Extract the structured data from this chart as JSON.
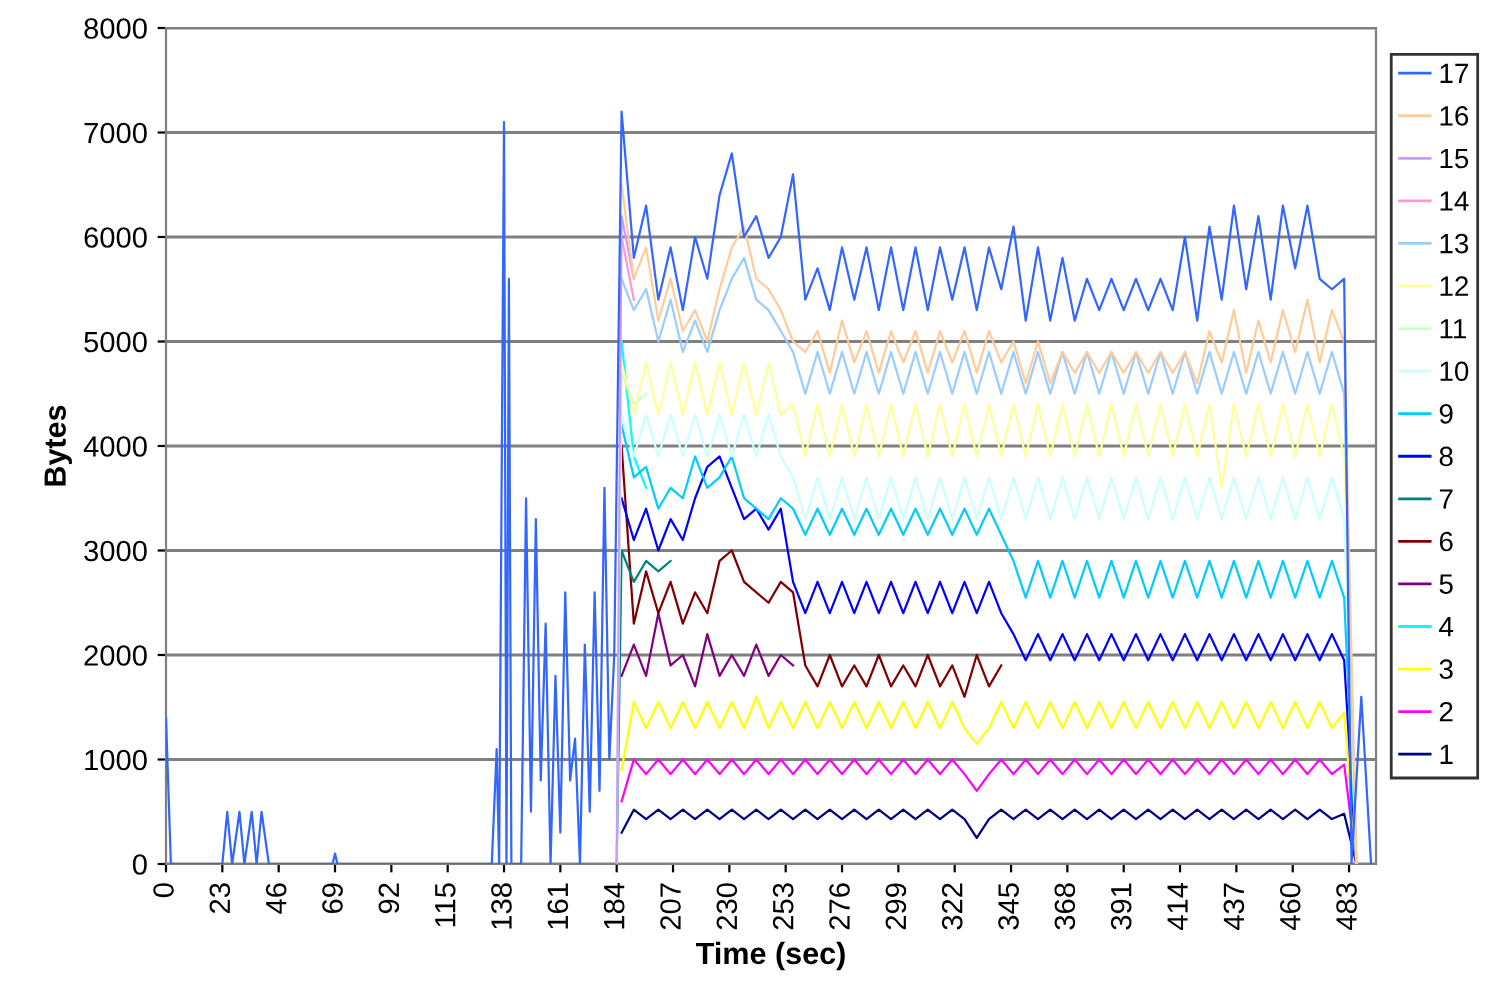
{
  "chart_data": {
    "type": "line",
    "xlabel": "Time (sec)",
    "ylabel": "Bytes",
    "x": [
      186,
      191,
      196,
      201,
      206,
      211,
      216,
      221,
      226,
      231,
      236,
      241,
      246,
      251,
      256,
      261,
      266,
      271,
      276,
      281,
      286,
      291,
      296,
      301,
      306,
      311,
      316,
      321,
      326,
      331,
      336,
      341,
      346,
      351,
      356,
      361,
      366,
      371,
      376,
      381,
      386,
      391,
      396,
      401,
      406,
      411,
      416,
      421,
      426,
      431,
      436,
      441,
      446,
      451,
      456,
      461,
      466,
      471,
      476,
      481,
      486
    ],
    "xlim": [
      0,
      494
    ],
    "xticks": [
      0,
      23,
      46,
      69,
      92,
      115,
      138,
      161,
      184,
      207,
      230,
      253,
      276,
      299,
      322,
      345,
      368,
      391,
      414,
      437,
      460,
      483
    ],
    "ylim": [
      0,
      8000
    ],
    "yticks": [
      0,
      1000,
      2000,
      3000,
      4000,
      5000,
      6000,
      7000,
      8000
    ],
    "grid": "y",
    "legend": "right",
    "line_style": "solid",
    "marker": "none",
    "series": [
      {
        "name": "1",
        "color": "#000080",
        "values": [
          300,
          520,
          430,
          520,
          430,
          520,
          430,
          520,
          430,
          520,
          430,
          520,
          430,
          520,
          430,
          520,
          430,
          520,
          430,
          520,
          430,
          520,
          430,
          520,
          430,
          520,
          430,
          520,
          430,
          250,
          430,
          520,
          430,
          520,
          430,
          520,
          430,
          520,
          430,
          520,
          430,
          520,
          430,
          520,
          430,
          520,
          430,
          520,
          430,
          520,
          430,
          520,
          430,
          520,
          430,
          520,
          430,
          520,
          430,
          480,
          0
        ]
      },
      {
        "name": "2",
        "color": "#ff00ff",
        "values": [
          600,
          1000,
          860,
          1000,
          860,
          1000,
          860,
          1000,
          860,
          1000,
          860,
          1000,
          860,
          1000,
          860,
          1000,
          860,
          1000,
          860,
          1000,
          860,
          1000,
          860,
          1000,
          860,
          1000,
          860,
          1000,
          860,
          700,
          860,
          1000,
          860,
          1000,
          860,
          1000,
          860,
          1000,
          860,
          1000,
          860,
          1000,
          860,
          1000,
          860,
          1000,
          860,
          1000,
          860,
          1000,
          860,
          1000,
          860,
          1000,
          860,
          1000,
          860,
          1000,
          860,
          950,
          0
        ]
      },
      {
        "name": "3",
        "color": "#ffff00",
        "values": [
          900,
          1550,
          1300,
          1550,
          1300,
          1550,
          1300,
          1550,
          1300,
          1550,
          1300,
          1600,
          1300,
          1550,
          1300,
          1550,
          1300,
          1550,
          1300,
          1550,
          1300,
          1550,
          1300,
          1550,
          1300,
          1550,
          1300,
          1550,
          1300,
          1150,
          1300,
          1550,
          1300,
          1550,
          1300,
          1550,
          1300,
          1550,
          1300,
          1550,
          1300,
          1550,
          1300,
          1550,
          1300,
          1550,
          1300,
          1550,
          1300,
          1550,
          1300,
          1550,
          1300,
          1550,
          1300,
          1550,
          1300,
          1550,
          1300,
          1450,
          0
        ]
      },
      {
        "name": "4",
        "color": "#00ffff",
        "x": [
          186,
          191,
          196
        ],
        "values": [
          5000,
          3900,
          3600
        ]
      },
      {
        "name": "5",
        "color": "#800080",
        "values": [
          1800,
          2100,
          1800,
          2400,
          1900,
          2000,
          1700,
          2200,
          1800,
          2000,
          1800,
          2100,
          1800,
          2000,
          1900,
          null,
          null,
          null,
          null,
          null,
          null,
          null,
          null,
          null,
          null,
          null,
          null,
          null,
          null,
          null,
          null,
          null,
          null,
          null,
          null,
          null,
          null,
          null,
          null,
          null,
          null,
          null,
          null,
          null,
          null,
          null,
          null,
          null,
          null,
          null,
          null,
          null,
          null,
          null,
          null,
          null,
          null,
          null,
          null,
          null,
          null
        ]
      },
      {
        "name": "6",
        "color": "#800000",
        "values": [
          4000,
          2300,
          2800,
          2400,
          2700,
          2300,
          2600,
          2400,
          2900,
          3000,
          2700,
          2600,
          2500,
          2700,
          2600,
          1900,
          1700,
          2000,
          1700,
          1900,
          1700,
          2000,
          1700,
          1900,
          1700,
          2000,
          1700,
          1900,
          1600,
          2000,
          1700,
          1900,
          null,
          null,
          null,
          null,
          null,
          null,
          null,
          null,
          null,
          null,
          null,
          null,
          null,
          null,
          null,
          null,
          null,
          null,
          null,
          null,
          null,
          null,
          null,
          null,
          null,
          null,
          null,
          null,
          null
        ]
      },
      {
        "name": "7",
        "color": "#008080",
        "x": [
          184,
          186,
          191,
          196,
          201,
          206
        ],
        "values": [
          0,
          3000,
          2700,
          2900,
          2800,
          2900
        ]
      },
      {
        "name": "8",
        "color": "#0000ff",
        "values": [
          3500,
          3100,
          3400,
          3000,
          3300,
          3100,
          3500,
          3800,
          3900,
          3600,
          3300,
          3400,
          3200,
          3400,
          2700,
          2400,
          2700,
          2400,
          2700,
          2400,
          2700,
          2400,
          2700,
          2400,
          2700,
          2400,
          2700,
          2400,
          2700,
          2400,
          2700,
          2400,
          2200,
          1950,
          2200,
          1950,
          2200,
          1950,
          2200,
          1950,
          2200,
          1950,
          2200,
          1950,
          2200,
          1950,
          2200,
          1950,
          2200,
          1950,
          2200,
          1950,
          2200,
          1950,
          2200,
          1950,
          2200,
          1950,
          2200,
          1950,
          0
        ]
      },
      {
        "name": "9",
        "color": "#00ccff",
        "values": [
          4200,
          3700,
          3800,
          3400,
          3600,
          3500,
          3900,
          3600,
          3700,
          3900,
          3500,
          3400,
          3300,
          3500,
          3400,
          3150,
          3400,
          3150,
          3400,
          3150,
          3400,
          3150,
          3400,
          3150,
          3400,
          3150,
          3400,
          3150,
          3400,
          3150,
          3400,
          3150,
          2900,
          2550,
          2900,
          2550,
          2900,
          2550,
          2900,
          2550,
          2900,
          2550,
          2900,
          2550,
          2900,
          2550,
          2900,
          2550,
          2900,
          2550,
          2900,
          2550,
          2900,
          2550,
          2900,
          2550,
          2900,
          2550,
          2900,
          2550,
          0
        ]
      },
      {
        "name": "10",
        "color": "#ccffff",
        "values": [
          4300,
          3900,
          4300,
          3900,
          4300,
          3900,
          4300,
          3900,
          4300,
          3900,
          4300,
          3900,
          4300,
          3900,
          3700,
          3300,
          3700,
          3300,
          3700,
          3300,
          3700,
          3300,
          3700,
          3300,
          3700,
          3300,
          3700,
          3300,
          3700,
          3300,
          3700,
          3300,
          3700,
          3300,
          3700,
          3300,
          3700,
          3300,
          3700,
          3300,
          3700,
          3300,
          3700,
          3300,
          3700,
          3300,
          3700,
          3300,
          3700,
          3300,
          3700,
          3300,
          3700,
          3300,
          3700,
          3300,
          3700,
          3300,
          3700,
          3300,
          0
        ]
      },
      {
        "name": "11",
        "color": "#ccffcc",
        "x": [
          184,
          186,
          191,
          196
        ],
        "values": [
          0,
          4700,
          4400,
          4500
        ]
      },
      {
        "name": "12",
        "color": "#ffff99",
        "values": [
          4800,
          4300,
          4800,
          4300,
          4800,
          4300,
          4800,
          4300,
          4800,
          4300,
          4800,
          4300,
          4800,
          4300,
          4400,
          3900,
          4400,
          3900,
          4400,
          3900,
          4400,
          3900,
          4400,
          3900,
          4400,
          3900,
          4400,
          3900,
          4400,
          3900,
          4400,
          3900,
          4400,
          3900,
          4400,
          3900,
          4400,
          3900,
          4400,
          3900,
          4400,
          3900,
          4400,
          3900,
          4400,
          3900,
          4400,
          3900,
          4400,
          3600,
          4400,
          3900,
          4400,
          3900,
          4400,
          3900,
          4400,
          3900,
          4400,
          3900,
          0
        ]
      },
      {
        "name": "13",
        "color": "#99ccff",
        "values": [
          5600,
          5300,
          5500,
          5000,
          5400,
          4900,
          5200,
          4900,
          5300,
          5600,
          5800,
          5400,
          5300,
          5100,
          4900,
          4500,
          4900,
          4500,
          4900,
          4500,
          4900,
          4500,
          4900,
          4500,
          4900,
          4500,
          4900,
          4500,
          4900,
          4500,
          4900,
          4500,
          4900,
          4500,
          4900,
          4500,
          4900,
          4500,
          4900,
          4500,
          4900,
          4500,
          4900,
          4500,
          4900,
          4500,
          4900,
          4500,
          4900,
          4500,
          4900,
          4500,
          4900,
          4500,
          4900,
          4500,
          4900,
          4500,
          4900,
          4500,
          0
        ]
      },
      {
        "name": "14",
        "color": "#ff99cc",
        "x": [
          186,
          191
        ],
        "values": [
          6000,
          5400
        ]
      },
      {
        "name": "15",
        "color": "#cc99ff",
        "x": [
          184,
          186,
          191
        ],
        "values": [
          0,
          6200,
          5600
        ]
      },
      {
        "name": "16",
        "color": "#ffcc99",
        "values": [
          6500,
          5600,
          5900,
          5200,
          5600,
          5100,
          5300,
          5000,
          5500,
          5900,
          6100,
          5600,
          5500,
          5300,
          5000,
          4900,
          5100,
          4700,
          5200,
          4800,
          5100,
          4700,
          5100,
          4800,
          5100,
          4700,
          5100,
          4800,
          5100,
          4700,
          5100,
          4800,
          5000,
          4600,
          5000,
          4600,
          4900,
          4700,
          4900,
          4700,
          4900,
          4700,
          4900,
          4700,
          4900,
          4700,
          4900,
          4600,
          5100,
          4800,
          5300,
          4700,
          5200,
          4800,
          5300,
          4900,
          5400,
          4800,
          5300,
          5000,
          0
        ]
      },
      {
        "name": "17",
        "color": "#3366ff",
        "x": [
          0,
          2,
          23,
          25,
          27,
          30,
          32,
          35,
          37,
          39,
          42,
          68,
          69,
          70,
          133,
          135,
          136,
          138,
          139,
          140,
          141,
          145,
          147,
          149,
          151,
          153,
          155,
          157,
          159,
          161,
          163,
          165,
          167,
          169,
          171,
          173,
          175,
          177,
          179,
          181,
          183,
          186,
          191,
          196,
          201,
          206,
          211,
          216,
          221,
          226,
          231,
          236,
          241,
          246,
          251,
          256,
          261,
          266,
          271,
          276,
          281,
          286,
          291,
          296,
          301,
          306,
          311,
          316,
          321,
          326,
          331,
          336,
          341,
          346,
          351,
          356,
          361,
          366,
          371,
          376,
          381,
          386,
          391,
          396,
          401,
          406,
          411,
          416,
          421,
          426,
          431,
          436,
          441,
          446,
          451,
          456,
          461,
          466,
          471,
          476,
          481,
          484,
          488,
          490,
          492
        ],
        "values": [
          1400,
          0,
          0,
          500,
          0,
          500,
          0,
          500,
          0,
          500,
          0,
          0,
          100,
          0,
          0,
          1100,
          0,
          7100,
          0,
          5600,
          0,
          0,
          3500,
          500,
          3300,
          800,
          2300,
          0,
          1800,
          300,
          2600,
          800,
          1200,
          0,
          2100,
          500,
          2600,
          700,
          3600,
          1000,
          2000,
          7200,
          5800,
          6300,
          5400,
          5900,
          5300,
          6000,
          5600,
          6400,
          6800,
          6000,
          6200,
          5800,
          6000,
          6600,
          5400,
          5700,
          5300,
          5900,
          5400,
          5900,
          5300,
          5900,
          5300,
          5900,
          5300,
          5900,
          5400,
          5900,
          5300,
          5900,
          5500,
          6100,
          5200,
          5900,
          5200,
          5800,
          5200,
          5600,
          5300,
          5600,
          5300,
          5600,
          5300,
          5600,
          5300,
          6000,
          5200,
          6100,
          5400,
          6300,
          5500,
          6200,
          5400,
          6300,
          5700,
          6300,
          5600,
          5500,
          5600,
          0,
          1600,
          800,
          0
        ]
      }
    ]
  }
}
